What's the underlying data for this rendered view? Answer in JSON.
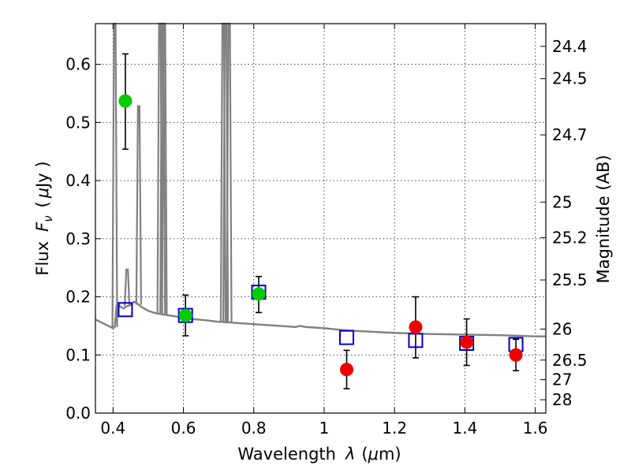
{
  "chart_data": {
    "type": "scatter",
    "xlabel_text": "Wavelength",
    "xlabel_symbol": "λ",
    "xlabel_unit_open": "(",
    "xlabel_unit_mu": "μ",
    "xlabel_unit_rest": "m)",
    "ylabel_text": "Flux",
    "ylabel_symbol": "F",
    "ylabel_sub": "ν",
    "ylabel_unit_open": "(",
    "ylabel_unit_mu": "μ",
    "ylabel_unit_rest": "Jy )",
    "y2label": "Magnitude (AB)",
    "xlim": [
      0.35,
      1.63
    ],
    "ylim": [
      0.0,
      0.67
    ],
    "grid": true,
    "x_ticks": [
      {
        "v": 0.4,
        "label": "0.4"
      },
      {
        "v": 0.6,
        "label": "0.6"
      },
      {
        "v": 0.8,
        "label": "0.8"
      },
      {
        "v": 1.0,
        "label": "1"
      },
      {
        "v": 1.2,
        "label": "1.2"
      },
      {
        "v": 1.4,
        "label": "1.4"
      },
      {
        "v": 1.6,
        "label": "1.6"
      }
    ],
    "y_ticks": [
      {
        "v": 0.0,
        "label": "0.0"
      },
      {
        "v": 0.1,
        "label": "0.1"
      },
      {
        "v": 0.2,
        "label": "0.2"
      },
      {
        "v": 0.3,
        "label": "0.3"
      },
      {
        "v": 0.4,
        "label": "0.4"
      },
      {
        "v": 0.5,
        "label": "0.5"
      },
      {
        "v": 0.6,
        "label": "0.6"
      }
    ],
    "y2_ticks": [
      {
        "v": 24.4,
        "label": "24.4"
      },
      {
        "v": 24.5,
        "label": "24.5"
      },
      {
        "v": 24.7,
        "label": "24.7"
      },
      {
        "v": 25.0,
        "label": "25"
      },
      {
        "v": 25.2,
        "label": "25.2"
      },
      {
        "v": 25.5,
        "label": "25.5"
      },
      {
        "v": 26.0,
        "label": "26"
      },
      {
        "v": 26.5,
        "label": "26.5"
      },
      {
        "v": 27.0,
        "label": "27"
      },
      {
        "v": 28.0,
        "label": "28"
      }
    ],
    "series": [
      {
        "kind": "model_spectrum",
        "color": "#808080",
        "x": [
          0.35,
          0.38,
          0.4,
          0.405,
          0.41,
          0.415,
          0.42,
          0.43,
          0.44,
          0.45,
          0.46,
          0.47,
          0.48,
          0.5,
          0.52,
          0.53,
          0.54,
          0.55,
          0.58,
          0.62,
          0.66,
          0.7,
          0.71,
          0.72,
          0.73,
          0.75,
          0.8,
          0.85,
          0.9,
          0.92,
          0.93,
          0.95,
          1.0,
          1.05,
          1.1,
          1.2,
          1.3,
          1.4,
          1.5,
          1.55,
          1.6,
          1.63
        ],
        "y": [
          0.161,
          0.152,
          0.146,
          0.148,
          0.185,
          0.19,
          0.183,
          0.18,
          0.184,
          0.186,
          0.192,
          0.188,
          0.183,
          0.176,
          0.172,
          0.171,
          0.17,
          0.169,
          0.166,
          0.162,
          0.16,
          0.157,
          0.157,
          0.156,
          0.156,
          0.155,
          0.153,
          0.151,
          0.149,
          0.148,
          0.15,
          0.148,
          0.146,
          0.143,
          0.141,
          0.138,
          0.136,
          0.135,
          0.134,
          0.133,
          0.132,
          0.132
        ],
        "emission_lines": [
          {
            "x": 0.405,
            "peak": 0.8
          },
          {
            "x": 0.44,
            "peak": 0.247
          },
          {
            "x": 0.473,
            "peak": 0.528
          },
          {
            "x": 0.533,
            "peak": 0.8
          },
          {
            "x": 0.541,
            "peak": 0.8
          },
          {
            "x": 0.546,
            "peak": 0.8
          },
          {
            "x": 0.713,
            "peak": 0.8
          },
          {
            "x": 0.72,
            "peak": 0.8
          },
          {
            "x": 0.73,
            "peak": 0.8
          }
        ]
      },
      {
        "kind": "model_photometry",
        "marker": "open-square",
        "color": "#0000cc",
        "x": [
          0.435,
          0.606,
          0.814,
          1.064,
          1.26,
          1.405,
          1.545
        ],
        "y": [
          0.178,
          0.168,
          0.208,
          0.13,
          0.125,
          0.12,
          0.118
        ]
      },
      {
        "kind": "observed_hst_optical",
        "marker": "filled-circle",
        "color": "#00cc00",
        "x": [
          0.435,
          0.606,
          0.814
        ],
        "y": [
          0.537,
          0.168,
          0.205
        ],
        "err_low": [
          0.083,
          0.035,
          0.032
        ],
        "err_high": [
          0.081,
          0.035,
          0.03
        ]
      },
      {
        "kind": "observed_hst_ir",
        "marker": "filled-circle",
        "color": "#ee0000",
        "x": [
          1.064,
          1.26,
          1.405,
          1.545
        ],
        "y": [
          0.075,
          0.148,
          0.122,
          0.1
        ],
        "err_low": [
          0.033,
          0.053,
          0.04,
          0.027
        ],
        "err_high": [
          0.033,
          0.052,
          0.04,
          0.027
        ]
      }
    ]
  }
}
